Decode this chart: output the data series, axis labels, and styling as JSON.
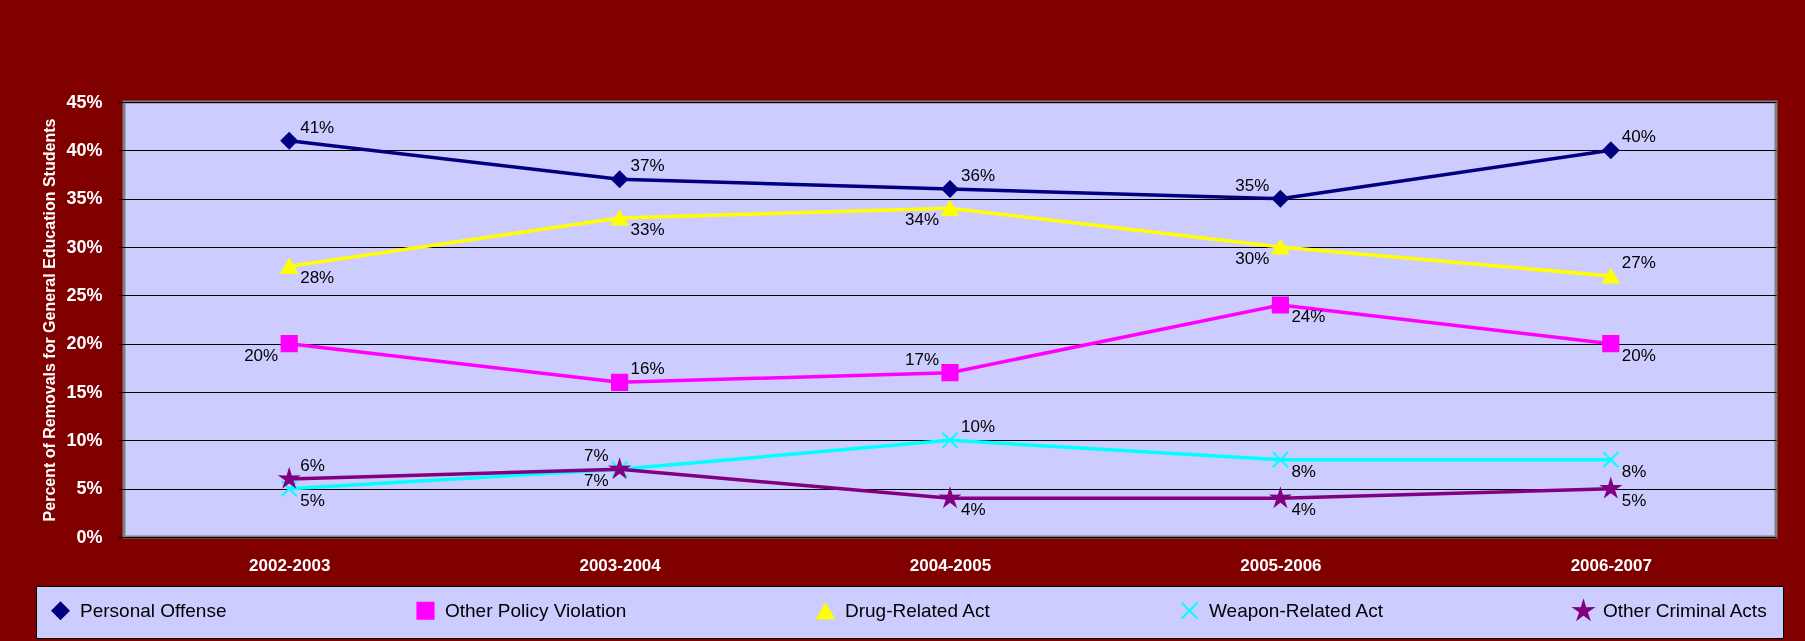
{
  "chart_data": {
    "type": "line",
    "ylabel": "Percent of Removals for General Education Students",
    "categories": [
      "2002-2003",
      "2003-2004",
      "2004-2005",
      "2005-2006",
      "2006-2007"
    ],
    "ylim": [
      0,
      45
    ],
    "yticks": [
      {
        "value": 0,
        "label": "0%"
      },
      {
        "value": 5,
        "label": "5%"
      },
      {
        "value": 10,
        "label": "10%"
      },
      {
        "value": 15,
        "label": "15%"
      },
      {
        "value": 20,
        "label": "20%"
      },
      {
        "value": 25,
        "label": "25%"
      },
      {
        "value": 30,
        "label": "30%"
      },
      {
        "value": 35,
        "label": "35%"
      },
      {
        "value": 40,
        "label": "40%"
      },
      {
        "value": 45,
        "label": "45%"
      }
    ],
    "grid": "y",
    "legend": "bottom",
    "series": [
      {
        "name": "Personal Offense",
        "color": "#000080",
        "marker": "diamond",
        "values": [
          41,
          37,
          36,
          35,
          40
        ],
        "value_labels": [
          "41%",
          "37%",
          "36%",
          "35%",
          "40%"
        ]
      },
      {
        "name": "Other Policy Violation",
        "color": "#ff00ff",
        "marker": "square",
        "values": [
          20,
          16,
          17,
          24,
          20
        ],
        "value_labels": [
          "20%",
          "16%",
          "17%",
          "24%",
          "20%"
        ]
      },
      {
        "name": "Drug-Related Act",
        "color": "#ffff00",
        "marker": "triangle",
        "values": [
          28,
          33,
          34,
          30,
          27
        ],
        "value_labels": [
          "28%",
          "33%",
          "34%",
          "30%",
          "27%"
        ]
      },
      {
        "name": "Weapon-Related Act",
        "color": "#00ffff",
        "marker": "cross",
        "values": [
          5,
          7,
          10,
          8,
          8
        ],
        "value_labels": [
          "5%",
          "7%",
          "10%",
          "8%",
          "8%"
        ]
      },
      {
        "name": "Other Criminal Acts",
        "color": "#800080",
        "marker": "star",
        "values": [
          6,
          7,
          4,
          4,
          5
        ],
        "value_labels": [
          "6%",
          "7%",
          "4%",
          "4%",
          "5%"
        ]
      }
    ]
  }
}
